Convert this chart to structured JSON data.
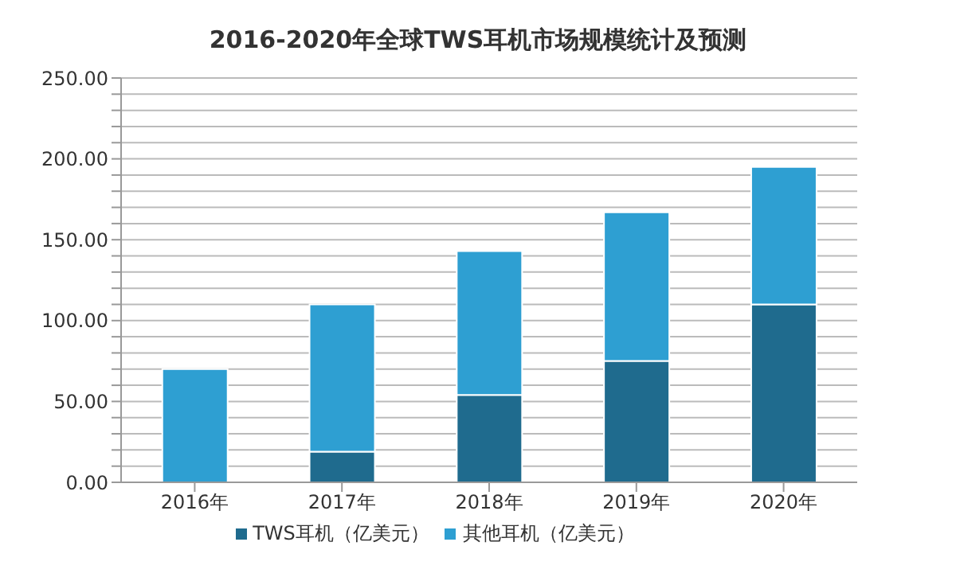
{
  "chart_data": {
    "type": "bar",
    "title": "2016-2020年全球TWS耳机市场规模统计及预测",
    "stacked": true,
    "categories": [
      "2016年",
      "2017年",
      "2018年",
      "2019年",
      "2020年"
    ],
    "series": [
      {
        "name": "TWS耳机（亿美元）",
        "color": "#1f6b8e",
        "values": [
          0,
          19,
          54,
          75,
          110
        ]
      },
      {
        "name": "其他耳机（亿美元）",
        "color": "#2e9fd2",
        "values": [
          70,
          91,
          89,
          92,
          85
        ]
      }
    ],
    "ylim": [
      0,
      250
    ],
    "yticks": [
      {
        "value": 0,
        "label": "0.00"
      },
      {
        "value": 10,
        "label": null
      },
      {
        "value": 20,
        "label": null
      },
      {
        "value": 30,
        "label": null
      },
      {
        "value": 40,
        "label": null
      },
      {
        "value": 50,
        "label": "50.00"
      },
      {
        "value": 60,
        "label": null
      },
      {
        "value": 70,
        "label": null
      },
      {
        "value": 80,
        "label": null
      },
      {
        "value": 90,
        "label": null
      },
      {
        "value": 100,
        "label": "100.00"
      },
      {
        "value": 110,
        "label": null
      },
      {
        "value": 120,
        "label": null
      },
      {
        "value": 130,
        "label": null
      },
      {
        "value": 140,
        "label": null
      },
      {
        "value": 150,
        "label": "150.00"
      },
      {
        "value": 160,
        "label": null
      },
      {
        "value": 170,
        "label": null
      },
      {
        "value": 180,
        "label": null
      },
      {
        "value": 190,
        "label": null
      },
      {
        "value": 200,
        "label": "200.00"
      },
      {
        "value": 210,
        "label": null
      },
      {
        "value": 220,
        "label": null
      },
      {
        "value": 230,
        "label": null
      },
      {
        "value": 240,
        "label": null
      },
      {
        "value": 250,
        "label": "250.00"
      }
    ],
    "grid": "y",
    "legend": "bottom"
  }
}
